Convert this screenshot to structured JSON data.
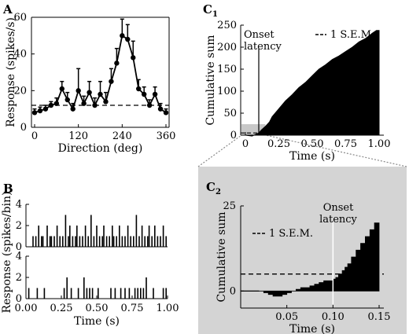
{
  "panels": {
    "A": "A",
    "B": "B",
    "C1": "C",
    "C1_sub": "1",
    "C2": "C",
    "C2_sub": "2"
  },
  "colors": {
    "ink": "#000000",
    "inset_bg": "#d4d4d4",
    "guide": "#8a8a8a",
    "onset_line_c2": "#ffffff"
  },
  "chart_data": [
    {
      "id": "A",
      "type": "line",
      "title": "",
      "xlabel": "Direction (deg)",
      "ylabel": "Response (spikes/s)",
      "xlim": [
        0,
        360
      ],
      "ylim": [
        0,
        60
      ],
      "xticks": [
        "0",
        "120",
        "240",
        "360"
      ],
      "yticks": [
        "0",
        "20",
        "40",
        "60"
      ],
      "x": [
        0,
        15,
        30,
        45,
        60,
        75,
        90,
        105,
        120,
        135,
        150,
        165,
        180,
        195,
        210,
        225,
        240,
        255,
        270,
        285,
        300,
        315,
        330,
        345,
        360
      ],
      "values": [
        8,
        9,
        10,
        12,
        13,
        21,
        15,
        10,
        20,
        13,
        19,
        12,
        18,
        14,
        25,
        35,
        50,
        48,
        38,
        21,
        18,
        12,
        18,
        10,
        8
      ],
      "errors": [
        2,
        2,
        2,
        2,
        3,
        4,
        4,
        3,
        12,
        4,
        6,
        4,
        7,
        5,
        7,
        8,
        9,
        8,
        9,
        5,
        4,
        3,
        4,
        3,
        2
      ],
      "baseline": 12,
      "grid": false
    },
    {
      "id": "B",
      "type": "bar",
      "xlabel": "Time (s)",
      "ylabel": "Response (spikes/bin)",
      "xlim": [
        0,
        1
      ],
      "ylim": [
        0,
        4
      ],
      "xticks": [
        "0.00",
        "0.25",
        "0.50",
        "0.75",
        "1.00"
      ],
      "yticks_top": [
        "0",
        "2",
        "4"
      ],
      "yticks_bottom": [
        "0",
        "2",
        "4"
      ],
      "series": [
        {
          "spikes": [
            [
              0.05,
              1
            ],
            [
              0.07,
              1
            ],
            [
              0.09,
              2
            ],
            [
              0.11,
              1
            ],
            [
              0.12,
              1
            ],
            [
              0.15,
              2
            ],
            [
              0.17,
              1
            ],
            [
              0.18,
              1
            ],
            [
              0.2,
              1
            ],
            [
              0.22,
              2
            ],
            [
              0.24,
              1
            ],
            [
              0.26,
              1
            ],
            [
              0.28,
              3
            ],
            [
              0.3,
              1
            ],
            [
              0.31,
              2
            ],
            [
              0.33,
              1
            ],
            [
              0.35,
              1
            ],
            [
              0.36,
              2
            ],
            [
              0.38,
              1
            ],
            [
              0.4,
              1
            ],
            [
              0.42,
              2
            ],
            [
              0.44,
              1
            ],
            [
              0.46,
              3
            ],
            [
              0.48,
              1
            ],
            [
              0.5,
              2
            ],
            [
              0.52,
              1
            ],
            [
              0.54,
              1
            ],
            [
              0.55,
              2
            ],
            [
              0.57,
              1
            ],
            [
              0.59,
              1
            ],
            [
              0.61,
              2
            ],
            [
              0.62,
              1
            ],
            [
              0.64,
              1
            ],
            [
              0.66,
              2
            ],
            [
              0.68,
              1
            ],
            [
              0.7,
              1
            ],
            [
              0.72,
              2
            ],
            [
              0.74,
              1
            ],
            [
              0.76,
              1
            ],
            [
              0.78,
              3
            ],
            [
              0.8,
              1
            ],
            [
              0.82,
              2
            ],
            [
              0.84,
              1
            ],
            [
              0.86,
              1
            ],
            [
              0.87,
              2
            ],
            [
              0.89,
              1
            ],
            [
              0.91,
              2
            ],
            [
              0.93,
              1
            ],
            [
              0.95,
              1
            ],
            [
              0.97,
              2
            ],
            [
              0.99,
              1
            ]
          ]
        },
        {
          "spikes": [
            [
              0.02,
              1
            ],
            [
              0.08,
              1
            ],
            [
              0.13,
              1
            ],
            [
              0.27,
              1
            ],
            [
              0.29,
              2
            ],
            [
              0.32,
              1
            ],
            [
              0.37,
              1
            ],
            [
              0.41,
              2
            ],
            [
              0.43,
              1
            ],
            [
              0.45,
              1
            ],
            [
              0.47,
              1
            ],
            [
              0.51,
              1
            ],
            [
              0.6,
              1
            ],
            [
              0.63,
              1
            ],
            [
              0.67,
              1
            ],
            [
              0.7,
              1
            ],
            [
              0.73,
              1
            ],
            [
              0.77,
              1
            ],
            [
              0.79,
              1
            ],
            [
              0.81,
              1
            ],
            [
              0.83,
              1
            ],
            [
              0.85,
              2
            ],
            [
              0.9,
              1
            ],
            [
              0.97,
              1
            ],
            [
              0.99,
              1
            ]
          ]
        }
      ]
    },
    {
      "id": "C1",
      "type": "area",
      "xlabel": "Time (s)",
      "ylabel": "Cumulative sum",
      "xlim": [
        0,
        1
      ],
      "ylim": [
        0,
        250
      ],
      "xticks": [
        "0",
        "0.25",
        "0.50",
        "0.75",
        "1.00"
      ],
      "yticks": [
        "0",
        "50",
        "100",
        "150",
        "200",
        "250"
      ],
      "x": [
        0,
        0.05,
        0.1,
        0.12,
        0.15,
        0.18,
        0.2,
        0.25,
        0.3,
        0.35,
        0.4,
        0.45,
        0.5,
        0.55,
        0.6,
        0.65,
        0.7,
        0.75,
        0.8,
        0.85,
        0.9,
        0.95,
        0.98,
        1.0
      ],
      "values": [
        0,
        -2,
        5,
        12,
        20,
        30,
        42,
        60,
        78,
        92,
        108,
        120,
        135,
        150,
        160,
        172,
        180,
        190,
        200,
        212,
        220,
        232,
        238,
        238
      ],
      "sem": 5,
      "onset": 0.1,
      "legend": "1 S.E.M.",
      "legend_position": "top-right",
      "annotation": "Onset latency",
      "inset_x": [
        0,
        0.15
      ],
      "inset_y": [
        0,
        25
      ]
    },
    {
      "id": "C2",
      "type": "area",
      "xlabel": "Time (s)",
      "ylabel": "Cumulative sum",
      "xlim": [
        0,
        0.15
      ],
      "ylim": [
        -5,
        25
      ],
      "xticks": [
        "0.05",
        "0.10",
        "0.15"
      ],
      "yticks": [
        "0",
        "25"
      ],
      "x": [
        0,
        0.02,
        0.025,
        0.03,
        0.035,
        0.04,
        0.045,
        0.05,
        0.055,
        0.06,
        0.065,
        0.07,
        0.075,
        0.08,
        0.085,
        0.09,
        0.095,
        0.1,
        0.103,
        0.106,
        0.11,
        0.113,
        0.116,
        0.12,
        0.125,
        0.13,
        0.135,
        0.14,
        0.145,
        0.15
      ],
      "values": [
        0,
        0,
        -0.5,
        -1,
        -1.5,
        -1.5,
        -1,
        -0.5,
        0,
        0.5,
        1,
        1,
        1.5,
        2,
        2.5,
        3,
        3,
        3.5,
        4,
        5,
        6,
        7,
        8,
        10,
        12,
        14,
        16,
        18,
        20,
        20
      ],
      "sem": 5,
      "onset": 0.1,
      "legend": "1 S.E.M.",
      "legend_position": "top-left",
      "annotation": "Onset latency"
    }
  ]
}
